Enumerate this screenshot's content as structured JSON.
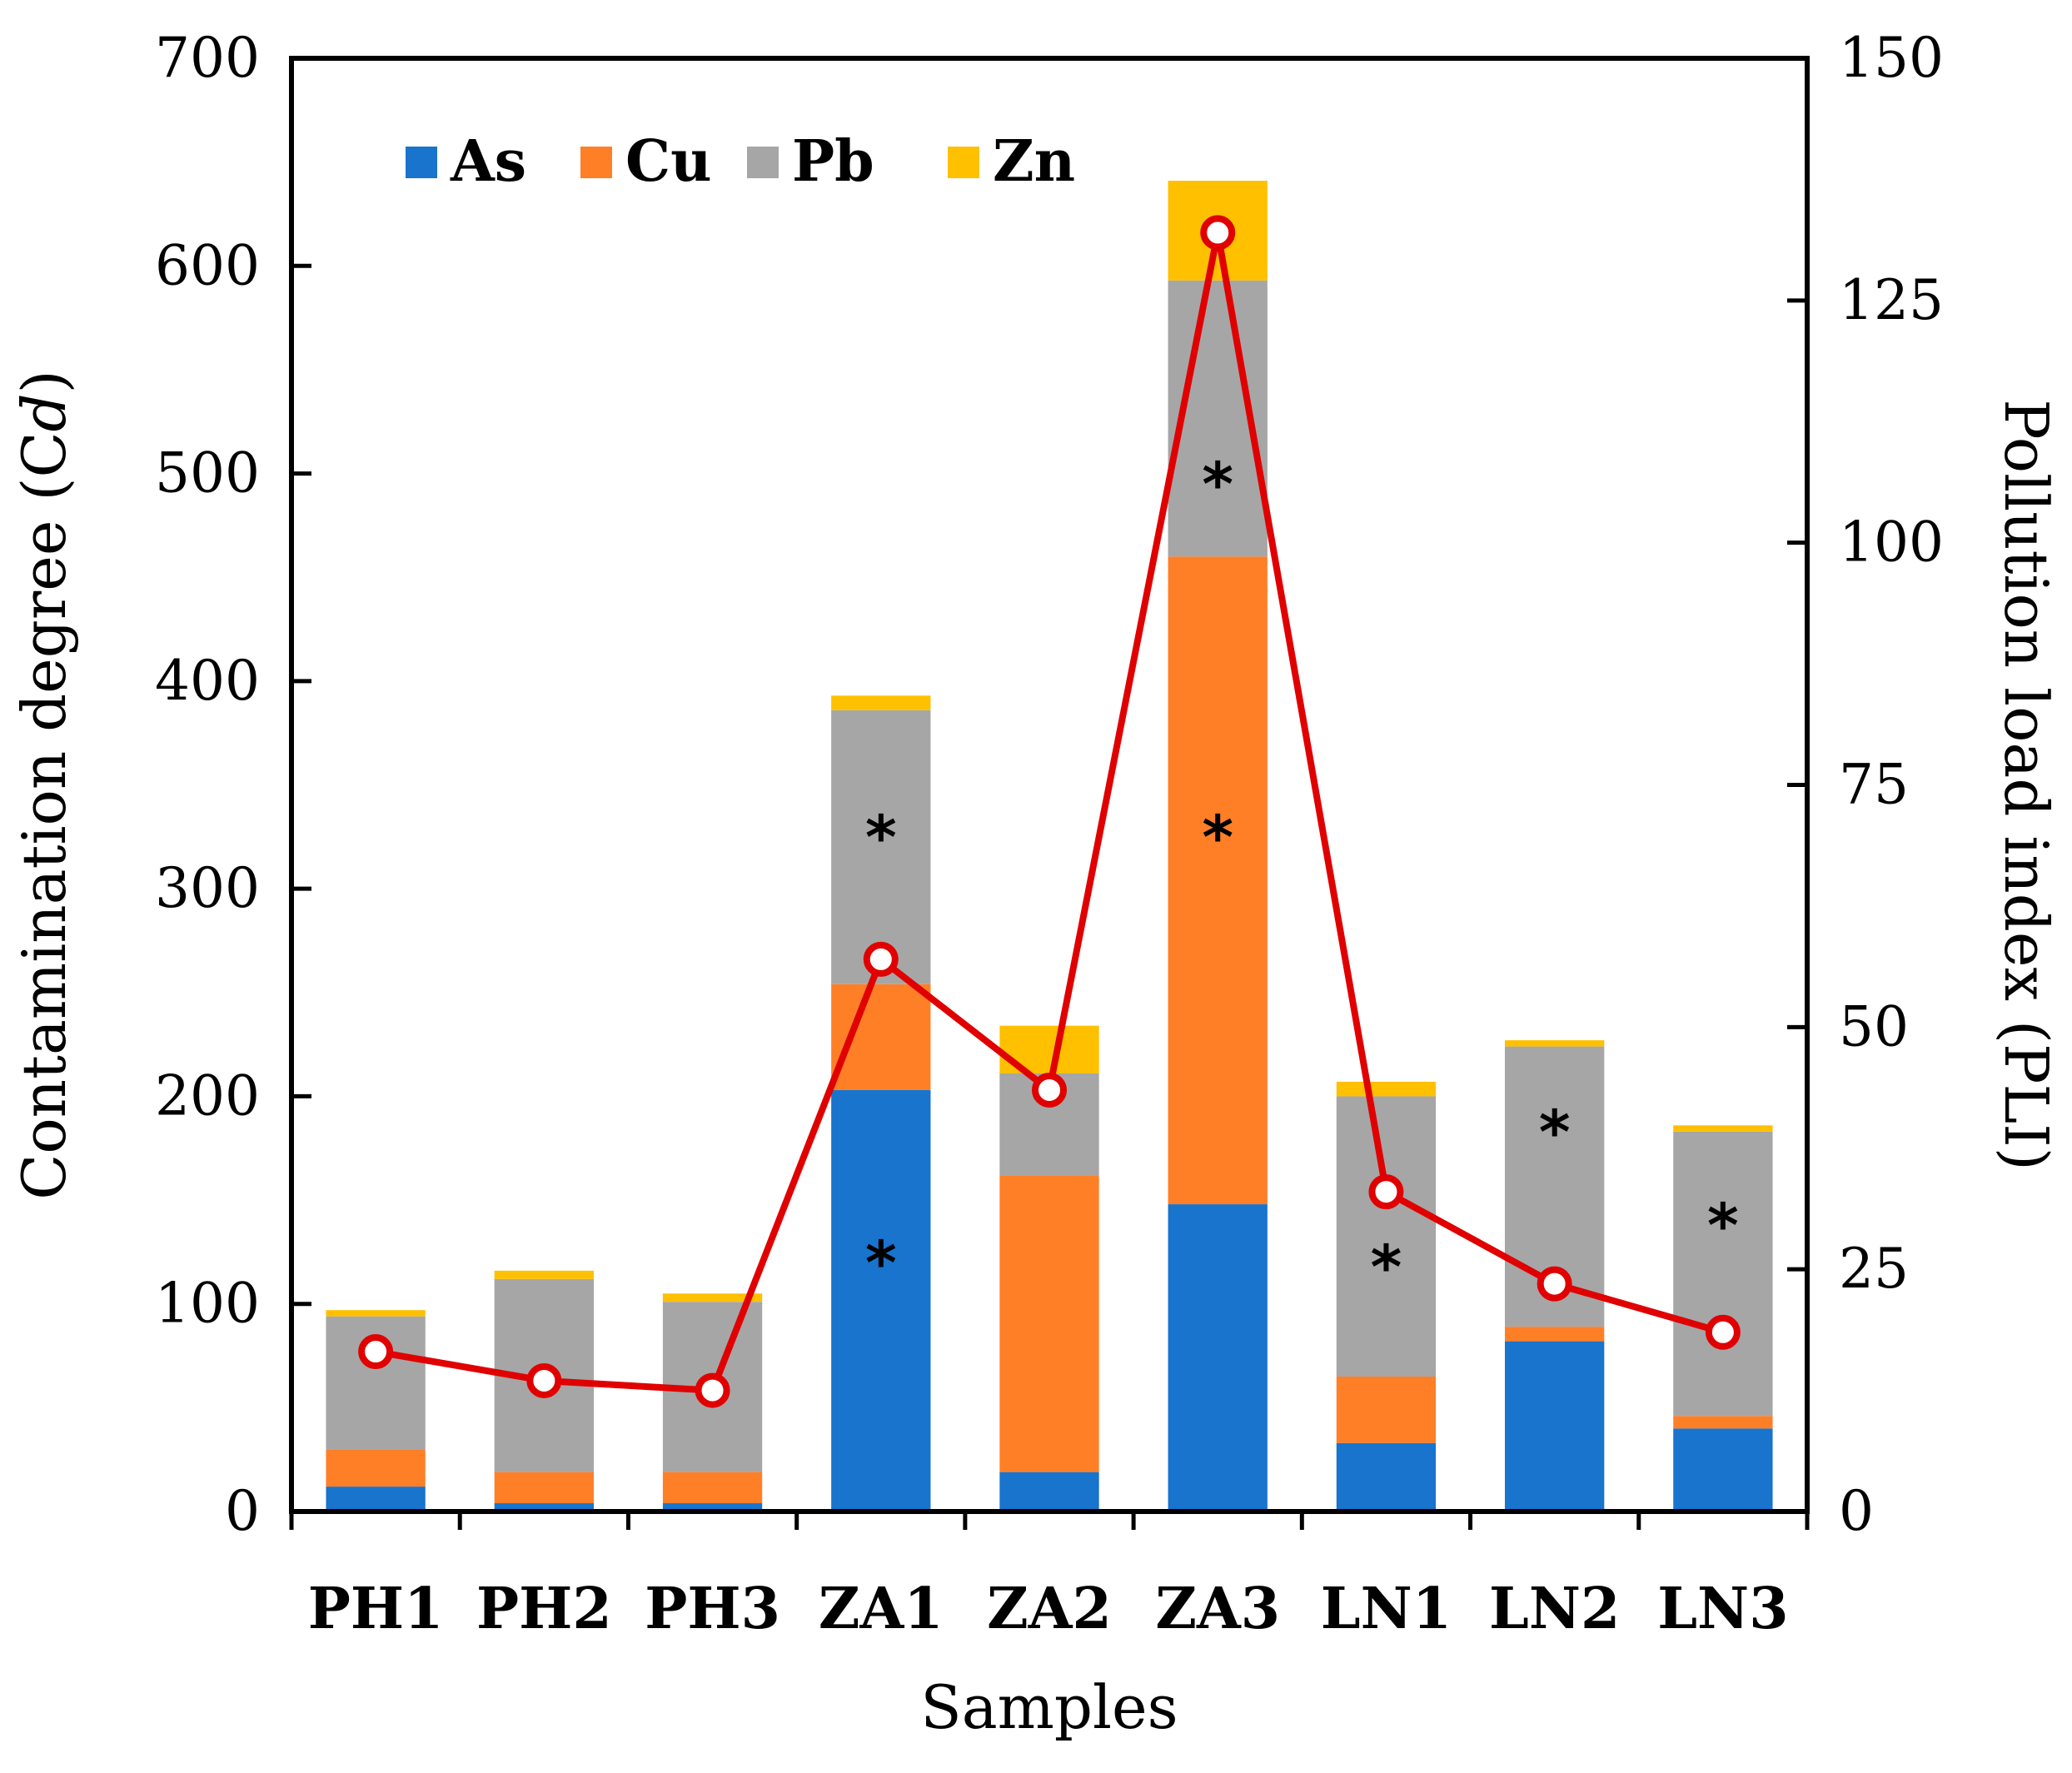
{
  "chart_data": {
    "type": "bar",
    "subtype": "stacked-bar-with-line",
    "categories": [
      "PH1",
      "PH2",
      "PH3",
      "ZA1",
      "ZA2",
      "ZA3",
      "LN1",
      "LN2",
      "LN3"
    ],
    "series": [
      {
        "name": "As",
        "color": "#1874CD",
        "values": [
          12,
          4,
          4,
          203,
          19,
          148,
          33,
          82,
          40
        ]
      },
      {
        "name": "Cu",
        "color": "#FF7F27",
        "values": [
          18,
          15,
          15,
          51,
          143,
          312,
          32,
          7,
          6
        ]
      },
      {
        "name": "Pb",
        "color": "#A6A6A6",
        "values": [
          64,
          93,
          82,
          132,
          49,
          133,
          135,
          135,
          137
        ]
      },
      {
        "name": "Zn",
        "color": "#FFC000",
        "values": [
          3,
          4,
          4,
          7,
          23,
          48,
          7,
          3,
          3
        ]
      }
    ],
    "line": {
      "name": "PLI",
      "color": "#E00000",
      "axis": "right",
      "values": [
        16.5,
        13.5,
        12.5,
        57,
        43.5,
        132,
        33,
        23.5,
        18.5
      ]
    },
    "annotations": [
      {
        "category": "ZA1",
        "symbol": "*",
        "y": 330
      },
      {
        "category": "ZA1",
        "symbol": "*",
        "y": 125
      },
      {
        "category": "ZA3",
        "symbol": "*",
        "y": 500
      },
      {
        "category": "ZA3",
        "symbol": "*",
        "y": 330
      },
      {
        "category": "LN1",
        "symbol": "*",
        "y": 123
      },
      {
        "category": "LN2",
        "symbol": "*",
        "y": 188
      },
      {
        "category": "LN3",
        "symbol": "*",
        "y": 143
      }
    ],
    "xlabel": "Samples",
    "ylabel_prefix": "Contamination degree (C",
    "ylabel_italic": "d",
    "ylabel_suffix": ")",
    "y2label": "Pollution load index (PLI)",
    "ylim": [
      0,
      700
    ],
    "yticks": [
      0,
      100,
      200,
      300,
      400,
      500,
      600,
      700
    ],
    "y2lim": [
      0,
      150
    ],
    "y2ticks": [
      0,
      25,
      50,
      75,
      100,
      125,
      150
    ],
    "legend_position": "top-left",
    "grid": false
  }
}
